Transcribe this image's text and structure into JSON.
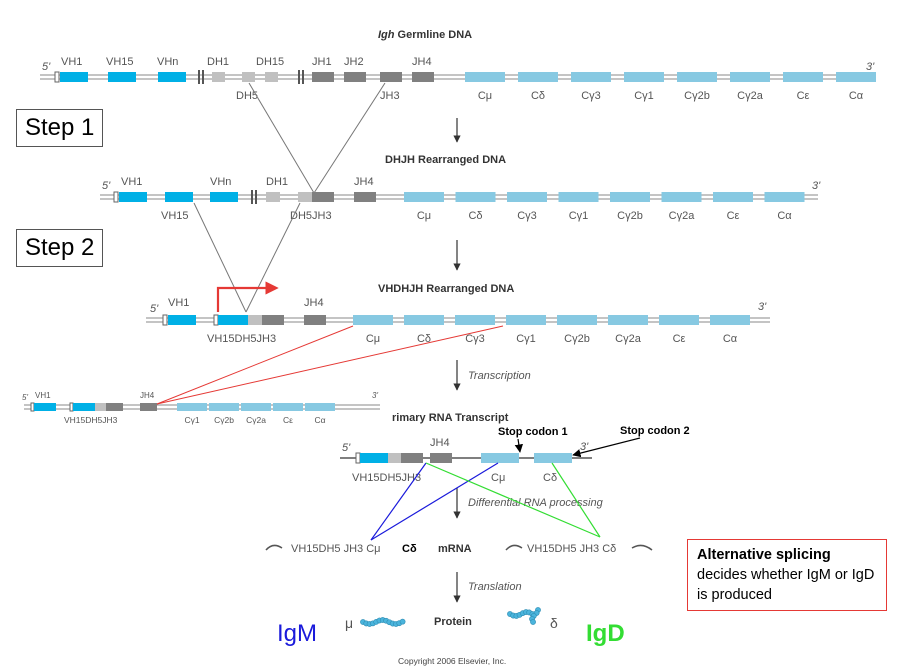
{
  "steps": {
    "step1": "Step 1",
    "step2": "Step 2"
  },
  "titles": {
    "germline_italic": "Igh",
    "germline_rest": " Germline DNA",
    "djrearranged": "DHJH Rearranged DNA",
    "vdjrearranged": "VHDHJH Rearranged DNA",
    "primary_rna": "rimary RNA Transcript",
    "mrna": "mRNA",
    "protein": "Protein"
  },
  "process": {
    "transcription": "Transcription",
    "differential": "Differential RNA processing",
    "translation": "Translation"
  },
  "ends": {
    "five": "5'",
    "three": "3'"
  },
  "constant_genes": [
    "Cμ",
    "Cδ",
    "Cγ3",
    "Cγ1",
    "Cγ2b",
    "Cγ2a",
    "Cε",
    "Cα"
  ],
  "small_constant_genes": [
    "Cγ1",
    "Cγ2b",
    "Cγ2a",
    "Cε",
    "Cα"
  ],
  "germline": {
    "vh1": "VH1",
    "vh15": "VH15",
    "vhn": "VHn",
    "dh1": "DH1",
    "dh15": "DH15",
    "dh5": "DH5",
    "jh1": "JH1",
    "jh2": "JH2",
    "jh3": "JH3",
    "jh4": "JH4"
  },
  "dj": {
    "vh1": "VH1",
    "vhn": "VHn",
    "vh15": "VH15",
    "dh1": "DH1",
    "dh5jh3": "DH5JH3",
    "jh4": "JH4"
  },
  "vdj": {
    "vh1": "VH1",
    "vdj": "VH15DH5JH3",
    "jh4": "JH4"
  },
  "small": {
    "vh1": "VH1",
    "vdj": "VH15DH5JH3",
    "jh4": "JH4"
  },
  "rna": {
    "vdj": "VH15DH5JH3",
    "jh4": "JH4",
    "cmu": "Cμ",
    "cdelta": "Cδ"
  },
  "stops": {
    "stop1": "Stop codon 1",
    "stop2": "Stop codon 2"
  },
  "mrna_labels": {
    "left": "VH15DH5 JH3 Cμ",
    "middle": "Cδ",
    "right": "VH15DH5 JH3 Cδ"
  },
  "protein_labels": {
    "mu": "μ",
    "delta": "δ"
  },
  "isotypes": {
    "igm": "IgM",
    "igd": "IgD"
  },
  "alt_box": {
    "bold": "Alternative splicing",
    "rest": "decides whether IgM or IgD is produced"
  },
  "copyright": "Copyright 2006 Elsevier, Inc.",
  "colors": {
    "v_segment": "#00b0e6",
    "d_segment": "#c0c0c0",
    "j_segment": "#808080",
    "c_segment": "#87c9e2",
    "igm": "#1a1adb",
    "igd": "#33dd33",
    "red": "#e53935"
  }
}
